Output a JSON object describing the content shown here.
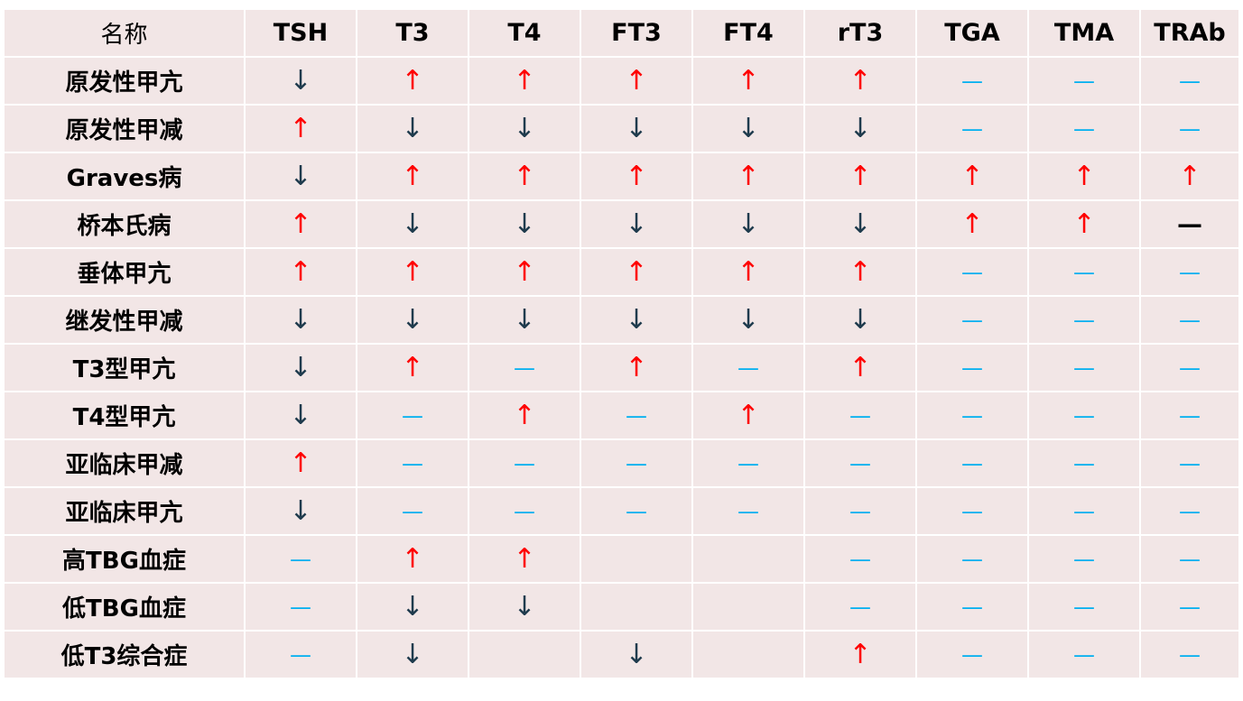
{
  "table": {
    "columns": [
      "名称",
      "TSH",
      "T3",
      "T4",
      "FT3",
      "FT4",
      "rT3",
      "TGA",
      "TMA",
      "TRAb"
    ],
    "symbols": {
      "up": "↑",
      "down": "↓",
      "normal": "—",
      "neg": "—"
    },
    "colors": {
      "up": "#ff0000",
      "down": "#1f3b4d",
      "normal": "#00b0f0",
      "neg": "#000000",
      "cell_background": "#f2e6e6"
    },
    "rows": [
      {
        "name": "原发性甲亢",
        "values": [
          "down",
          "up",
          "up",
          "up",
          "up",
          "up",
          "normal",
          "normal",
          "normal"
        ]
      },
      {
        "name": "原发性甲减",
        "values": [
          "up",
          "down",
          "down",
          "down",
          "down",
          "down",
          "normal",
          "normal",
          "normal"
        ]
      },
      {
        "name": "Graves病",
        "values": [
          "down",
          "up",
          "up",
          "up",
          "up",
          "up",
          "up",
          "up",
          "up"
        ]
      },
      {
        "name": "桥本氏病",
        "values": [
          "up",
          "down",
          "down",
          "down",
          "down",
          "down",
          "up",
          "up",
          "neg"
        ]
      },
      {
        "name": "垂体甲亢",
        "values": [
          "up",
          "up",
          "up",
          "up",
          "up",
          "up",
          "normal",
          "normal",
          "normal"
        ]
      },
      {
        "name": "继发性甲减",
        "values": [
          "down",
          "down",
          "down",
          "down",
          "down",
          "down",
          "normal",
          "normal",
          "normal"
        ]
      },
      {
        "name": "T3型甲亢",
        "values": [
          "down",
          "up",
          "normal",
          "up",
          "normal",
          "up",
          "normal",
          "normal",
          "normal"
        ]
      },
      {
        "name": "T4型甲亢",
        "values": [
          "down",
          "normal",
          "up",
          "normal",
          "up",
          "normal",
          "normal",
          "normal",
          "normal"
        ]
      },
      {
        "name": "亚临床甲减",
        "values": [
          "up",
          "normal",
          "normal",
          "normal",
          "normal",
          "normal",
          "normal",
          "normal",
          "normal"
        ]
      },
      {
        "name": "亚临床甲亢",
        "values": [
          "down",
          "normal",
          "normal",
          "normal",
          "normal",
          "normal",
          "normal",
          "normal",
          "normal"
        ]
      },
      {
        "name": "高TBG血症",
        "values": [
          "normal",
          "up",
          "up",
          "",
          "",
          "normal",
          "normal",
          "normal",
          "normal"
        ]
      },
      {
        "name": "低TBG血症",
        "values": [
          "normal",
          "down",
          "down",
          "",
          "",
          "normal",
          "normal",
          "normal",
          "normal"
        ]
      },
      {
        "name": "低T3综合症",
        "values": [
          "normal",
          "down",
          "",
          "down",
          "",
          "up",
          "normal",
          "normal",
          "normal"
        ]
      }
    ]
  }
}
